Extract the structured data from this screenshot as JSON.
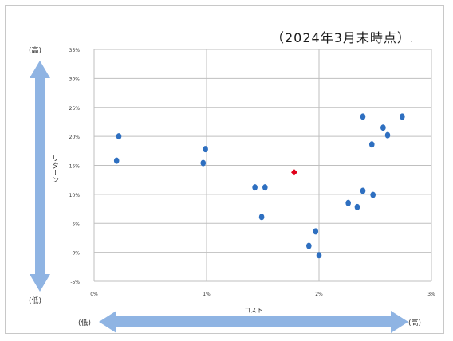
{
  "as_of": "（2024年3月末時点）",
  "as_of_tail": ".",
  "y_axis": {
    "label": "リターン",
    "top_end": "(高)",
    "bottom_end": "(低)"
  },
  "x_axis": {
    "label": "コスト",
    "left_end": "(低)",
    "right_end": "(高)"
  },
  "colors": {
    "points": "#2e6fc0",
    "highlight": "#e0001a",
    "arrow": "#8fb4e3",
    "grid": "#bfbfbf"
  },
  "chart_data": {
    "type": "scatter",
    "xlabel": "コスト",
    "ylabel": "リターン",
    "xlim": [
      0,
      3
    ],
    "ylim": [
      -5,
      35
    ],
    "x_ticks": [
      "0%",
      "1%",
      "2%",
      "3%"
    ],
    "y_ticks": [
      "-5%",
      "0%",
      "5%",
      "10%",
      "15%",
      "20%",
      "25%",
      "30%",
      "35%"
    ],
    "grid": true,
    "series": [
      {
        "points": [
          {
            "x": 0.22,
            "y": 20.0
          },
          {
            "x": 0.2,
            "y": 15.8
          },
          {
            "x": 0.99,
            "y": 17.8
          },
          {
            "x": 0.97,
            "y": 15.4
          },
          {
            "x": 1.43,
            "y": 11.2
          },
          {
            "x": 1.52,
            "y": 11.2
          },
          {
            "x": 1.49,
            "y": 6.1
          },
          {
            "x": 1.91,
            "y": 1.1
          },
          {
            "x": 1.97,
            "y": 3.6
          },
          {
            "x": 2.0,
            "y": -0.5
          },
          {
            "x": 2.26,
            "y": 8.5
          },
          {
            "x": 2.34,
            "y": 7.8
          },
          {
            "x": 2.39,
            "y": 10.6
          },
          {
            "x": 2.48,
            "y": 9.9
          },
          {
            "x": 2.39,
            "y": 23.4
          },
          {
            "x": 2.47,
            "y": 18.6
          },
          {
            "x": 2.57,
            "y": 21.5
          },
          {
            "x": 2.61,
            "y": 20.2
          },
          {
            "x": 2.74,
            "y": 23.4
          }
        ]
      },
      {
        "highlight": true,
        "points": [
          {
            "x": 1.78,
            "y": 13.8
          }
        ]
      }
    ]
  }
}
